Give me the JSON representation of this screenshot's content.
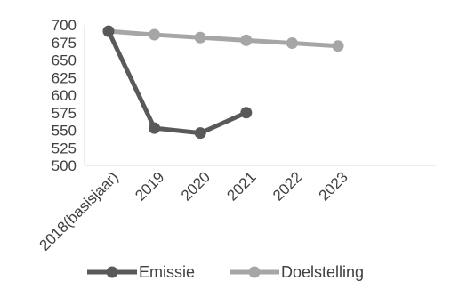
{
  "chart_data": {
    "type": "line",
    "title": "",
    "categories": [
      "2018(basisjaar)",
      "2019",
      "2020",
      "2021",
      "2022",
      "2023"
    ],
    "series": [
      {
        "name": "Emissie",
        "values": [
          691,
          553,
          546,
          575,
          null,
          null
        ],
        "color": "#595959"
      },
      {
        "name": "Doelstelling",
        "values": [
          691,
          686,
          682,
          678,
          674,
          670
        ],
        "color": "#a6a6a6"
      }
    ],
    "yticks": [
      500,
      525,
      550,
      575,
      600,
      625,
      650,
      675,
      700
    ],
    "ylim": [
      500,
      700
    ],
    "grid": false,
    "legend": "bottom",
    "xlabel": "",
    "ylabel": ""
  }
}
